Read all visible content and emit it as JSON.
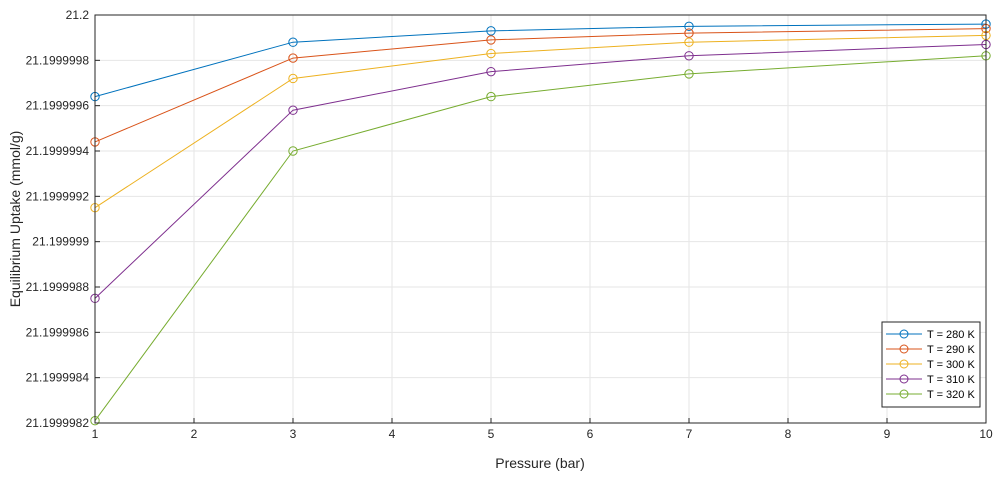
{
  "chart_data": {
    "type": "line",
    "xlabel": "Pressure (bar)",
    "ylabel": "Equilibrium Uptake (mmol/g)",
    "xlim": [
      1,
      10
    ],
    "ylim": [
      21.1999982,
      21.2
    ],
    "x_ticks": [
      "1",
      "2",
      "3",
      "4",
      "5",
      "6",
      "7",
      "8",
      "9",
      "10"
    ],
    "y_ticks": [
      "21.1999982",
      "21.1999984",
      "21.1999986",
      "21.1999988",
      "21.199999",
      "21.1999992",
      "21.1999994",
      "21.1999996",
      "21.1999998",
      "21.2"
    ],
    "grid": true,
    "legend_position": "bottom-right",
    "x": [
      1,
      3,
      5,
      7,
      10
    ],
    "series": [
      {
        "name": "T = 280 K",
        "color": "#0072BD",
        "values": [
          21.19999964,
          21.19999988,
          21.19999993,
          21.19999995,
          21.19999996
        ]
      },
      {
        "name": "T = 290 K",
        "color": "#D95319",
        "values": [
          21.19999944,
          21.19999981,
          21.19999989,
          21.19999992,
          21.19999994
        ]
      },
      {
        "name": "T = 300 K",
        "color": "#EDB120",
        "values": [
          21.19999915,
          21.19999972,
          21.19999983,
          21.19999988,
          21.19999991
        ]
      },
      {
        "name": "T = 310 K",
        "color": "#7E2F8E",
        "values": [
          21.19999875,
          21.19999958,
          21.19999975,
          21.19999982,
          21.19999987
        ]
      },
      {
        "name": "T = 320 K",
        "color": "#77AC30",
        "values": [
          21.19999821,
          21.1999994,
          21.19999964,
          21.19999974,
          21.19999982
        ]
      }
    ]
  }
}
